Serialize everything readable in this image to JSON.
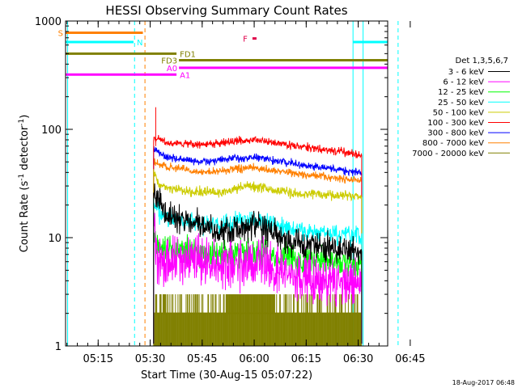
{
  "chart_data": {
    "type": "line",
    "title": "HESSI Observing Summary Count Rates",
    "xlabel": "Start Time (30-Aug-15 05:07:22)",
    "ylabel_main": "Count Rate (s",
    "ylabel_sup1": "-1",
    "ylabel_mid": " detector",
    "ylabel_sup2": "-1",
    "ylabel_end": ")",
    "footer": "18-Aug-2017 06:48",
    "x_range_minutes": [
      5.6,
      98.5
    ],
    "y_range": [
      1,
      1000
    ],
    "y_scale": "log",
    "x_ticks": [
      {
        "m": 15,
        "label": "05:15"
      },
      {
        "m": 30,
        "label": "05:30"
      },
      {
        "m": 45,
        "label": "05:45"
      },
      {
        "m": 60,
        "label": "06:00"
      },
      {
        "m": 75,
        "label": "06:15"
      },
      {
        "m": 90,
        "label": "06:30"
      },
      {
        "m": 105,
        "label": "06:45"
      }
    ],
    "y_ticks": [
      {
        "v": 1,
        "label": "1"
      },
      {
        "v": 10,
        "label": "10"
      },
      {
        "v": 100,
        "label": "100"
      },
      {
        "v": 1000,
        "label": "1000"
      }
    ],
    "legend_title": "Det 1,3,5,6,7",
    "series": [
      {
        "name": "3 - 6 keV",
        "color": "#000000",
        "start": 31,
        "end": 91,
        "base": [
          [
            31,
            25
          ],
          [
            33,
            22
          ],
          [
            35,
            16
          ],
          [
            42,
            14
          ],
          [
            50,
            11
          ],
          [
            58,
            13
          ],
          [
            63,
            12
          ],
          [
            70,
            9
          ],
          [
            80,
            8
          ],
          [
            91,
            7.5
          ]
        ],
        "noise": 0.09
      },
      {
        "name": "6 - 12 keV",
        "color": "#ff00ff",
        "start": 31,
        "end": 91,
        "base": [
          [
            31,
            15
          ],
          [
            32,
            6.5
          ],
          [
            40,
            6
          ],
          [
            50,
            5.5
          ],
          [
            58,
            6.2
          ],
          [
            62,
            5.5
          ],
          [
            70,
            4.5
          ],
          [
            80,
            4
          ],
          [
            91,
            3.8
          ]
        ],
        "noise": 0.16
      },
      {
        "name": "12 - 25 keV",
        "color": "#00ff00",
        "start": 31,
        "end": 91,
        "base": [
          [
            31,
            12
          ],
          [
            32,
            8
          ],
          [
            40,
            7.5
          ],
          [
            50,
            7
          ],
          [
            58,
            7.5
          ],
          [
            63,
            7
          ],
          [
            70,
            6.5
          ],
          [
            80,
            6
          ],
          [
            91,
            5.8
          ]
        ],
        "noise": 0.09
      },
      {
        "name": "25 - 50 keV",
        "color": "#00ffff",
        "start": 31,
        "end": 91,
        "base": [
          [
            31,
            20
          ],
          [
            33,
            16
          ],
          [
            40,
            14
          ],
          [
            50,
            13
          ],
          [
            58,
            15
          ],
          [
            62,
            14
          ],
          [
            70,
            12
          ],
          [
            80,
            11
          ],
          [
            91,
            10
          ]
        ],
        "noise": 0.06
      },
      {
        "name": "50 - 100 keV",
        "color": "#cccc00",
        "start": 31,
        "end": 91,
        "base": [
          [
            31,
            40
          ],
          [
            33,
            30
          ],
          [
            40,
            27
          ],
          [
            50,
            26
          ],
          [
            58,
            30
          ],
          [
            62,
            29
          ],
          [
            70,
            26
          ],
          [
            80,
            25
          ],
          [
            91,
            24
          ]
        ],
        "noise": 0.03
      },
      {
        "name": "100 - 300 keV",
        "color": "#ff0000",
        "start": 31,
        "end": 91,
        "base": [
          [
            31,
            85
          ],
          [
            35,
            75
          ],
          [
            45,
            72
          ],
          [
            55,
            78
          ],
          [
            60,
            80
          ],
          [
            65,
            76
          ],
          [
            75,
            68
          ],
          [
            85,
            62
          ],
          [
            91,
            58
          ]
        ],
        "noise": 0.025
      },
      {
        "name": "300 - 800 keV",
        "color": "#0000ff",
        "start": 31,
        "end": 91,
        "base": [
          [
            31,
            65
          ],
          [
            35,
            55
          ],
          [
            45,
            50
          ],
          [
            55,
            54
          ],
          [
            60,
            55
          ],
          [
            65,
            52
          ],
          [
            75,
            46
          ],
          [
            85,
            42
          ],
          [
            91,
            40
          ]
        ],
        "noise": 0.025
      },
      {
        "name": "800 - 7000 keV",
        "color": "#ff8000",
        "start": 31,
        "end": 91,
        "base": [
          [
            31,
            50
          ],
          [
            35,
            45
          ],
          [
            45,
            40
          ],
          [
            55,
            43
          ],
          [
            60,
            44
          ],
          [
            65,
            42
          ],
          [
            75,
            38
          ],
          [
            85,
            35
          ],
          [
            91,
            34
          ]
        ],
        "noise": 0.025
      },
      {
        "name": "7000 - 20000 keV",
        "color": "#808000",
        "start": 31,
        "end": 91,
        "base": [
          [
            31,
            2
          ],
          [
            91,
            2
          ]
        ],
        "noise": 0.0
      }
    ],
    "flag_bars": [
      {
        "label": "S",
        "color": "#ff8000",
        "start": 5.6,
        "end": 27.9,
        "y": 780,
        "label_side": "left"
      },
      {
        "label": "N",
        "color": "#00ffff",
        "start": 5.6,
        "end": 25.2,
        "y": 640,
        "label_side": "right"
      },
      {
        "label": "",
        "color": "#00ffff",
        "start": 88.5,
        "end": 98.5,
        "y": 640,
        "label_side": "none"
      },
      {
        "label": "FD1",
        "color": "#808000",
        "start": 5.6,
        "end": 37.6,
        "y": 500,
        "label_side": "right"
      },
      {
        "label": "FD3",
        "color": "#808000",
        "start": 38.3,
        "end": 98.5,
        "y": 435,
        "label_side": "left"
      },
      {
        "label": "A0",
        "color": "#ff00ff",
        "start": 38.3,
        "end": 98.5,
        "y": 370,
        "label_side": "left"
      },
      {
        "label": "A1",
        "color": "#ff00ff",
        "start": 5.6,
        "end": 37.6,
        "y": 320,
        "label_side": "right"
      }
    ],
    "flare_marker": {
      "label": "F",
      "color": "#e0004a",
      "x": 59.5,
      "y": 690
    },
    "vertical_lines": [
      {
        "m": 6.2,
        "color": "#00ffff",
        "dashed": false
      },
      {
        "m": 25.5,
        "color": "#00ffff",
        "dashed": true
      },
      {
        "m": 28.5,
        "color": "#ff8000",
        "dashed": true
      },
      {
        "m": 88.5,
        "color": "#00ffff",
        "dashed": false
      },
      {
        "m": 91.4,
        "color": "#00ffff",
        "dashed": false
      },
      {
        "m": 101.5,
        "color": "#00ffff",
        "dashed": true
      }
    ]
  }
}
